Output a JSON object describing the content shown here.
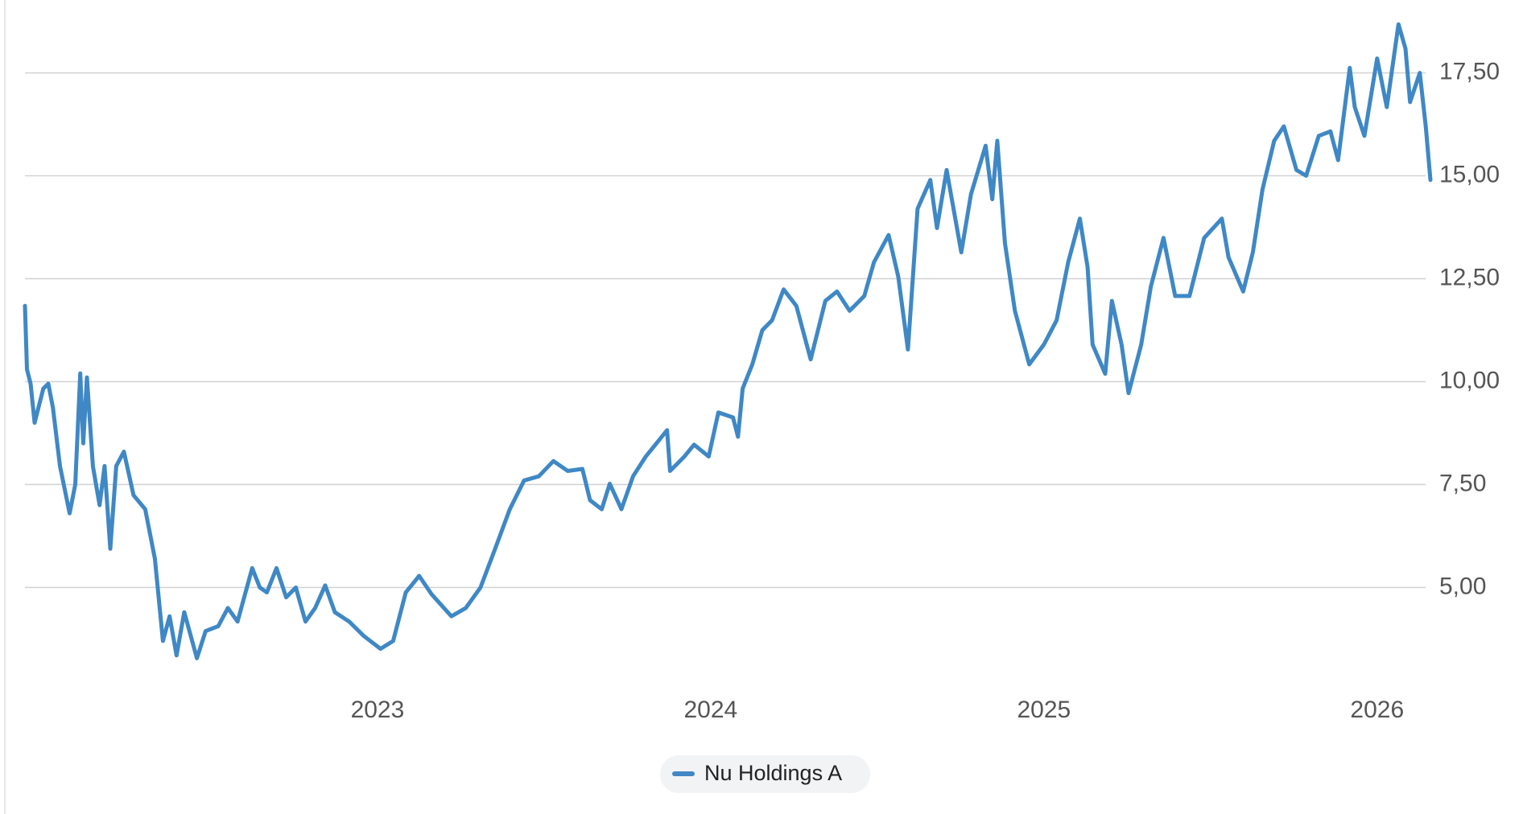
{
  "chart_data": {
    "type": "line",
    "x": [
      2021.942,
      2021.948,
      2021.959,
      2021.971,
      2021.997,
      2022.012,
      2022.026,
      2022.047,
      2022.076,
      2022.093,
      2022.108,
      2022.117,
      2022.128,
      2022.146,
      2022.166,
      2022.181,
      2022.198,
      2022.216,
      2022.239,
      2022.268,
      2022.303,
      2022.332,
      2022.356,
      2022.376,
      2022.397,
      2022.42,
      2022.458,
      2022.484,
      2022.522,
      2022.551,
      2022.58,
      2022.624,
      2022.647,
      2022.668,
      2022.697,
      2022.726,
      2022.755,
      2022.784,
      2022.813,
      2022.843,
      2022.872,
      2022.915,
      2022.959,
      2023.009,
      2023.047,
      2023.085,
      2023.125,
      2023.163,
      2023.222,
      2023.265,
      2023.309,
      2023.353,
      2023.397,
      2023.44,
      2023.484,
      2023.528,
      2023.571,
      2023.615,
      2023.638,
      2023.673,
      2023.697,
      2023.732,
      2023.767,
      2023.805,
      2023.834,
      2023.869,
      2023.878,
      2023.921,
      2023.95,
      2023.994,
      2024.023,
      2024.067,
      2024.082,
      2024.096,
      2024.125,
      2024.155,
      2024.184,
      2024.219,
      2024.257,
      2024.3,
      2024.344,
      2024.379,
      2024.417,
      2024.461,
      2024.49,
      2024.534,
      2024.563,
      2024.592,
      2024.621,
      2024.659,
      2024.679,
      2024.708,
      2024.752,
      2024.781,
      2024.825,
      2024.845,
      2024.86,
      2024.883,
      2024.913,
      2024.956,
      2025.0,
      2025.038,
      2025.073,
      2025.108,
      2025.131,
      2025.146,
      2025.184,
      2025.204,
      2025.233,
      2025.254,
      2025.292,
      2025.321,
      2025.359,
      2025.394,
      2025.437,
      2025.481,
      2025.534,
      2025.554,
      2025.598,
      2025.627,
      2025.656,
      2025.691,
      2025.72,
      2025.758,
      2025.787,
      2025.825,
      2025.86,
      2025.883,
      2025.918,
      2025.933,
      2025.962,
      2026.0,
      2026.029,
      2026.064,
      2026.085,
      2026.099,
      2026.128,
      2026.146,
      2026.16
    ],
    "series": [
      {
        "name": "Nu Holdings A",
        "color": "#3f88c5",
        "values": [
          11.84,
          10.3,
          9.95,
          9.0,
          9.83,
          9.95,
          9.36,
          7.95,
          6.8,
          7.5,
          10.2,
          8.5,
          10.1,
          7.95,
          7.0,
          7.95,
          5.94,
          7.95,
          8.3,
          7.24,
          6.9,
          5.7,
          3.7,
          4.3,
          3.35,
          4.4,
          3.28,
          3.94,
          4.06,
          4.5,
          4.17,
          5.47,
          5.0,
          4.88,
          5.47,
          4.76,
          5.0,
          4.17,
          4.5,
          5.05,
          4.4,
          4.17,
          3.82,
          3.51,
          3.7,
          4.88,
          5.28,
          4.83,
          4.3,
          4.5,
          5.0,
          5.94,
          6.9,
          7.6,
          7.7,
          8.07,
          7.83,
          7.88,
          7.12,
          6.9,
          7.52,
          6.9,
          7.7,
          8.18,
          8.47,
          8.82,
          7.83,
          8.18,
          8.47,
          8.18,
          9.25,
          9.13,
          8.66,
          9.83,
          10.42,
          11.25,
          11.49,
          12.24,
          11.84,
          10.54,
          11.96,
          12.19,
          11.72,
          12.08,
          12.9,
          13.56,
          12.55,
          10.78,
          14.2,
          14.9,
          13.73,
          15.14,
          13.14,
          14.55,
          15.73,
          14.43,
          15.85,
          13.37,
          11.72,
          10.42,
          10.9,
          11.49,
          12.9,
          13.96,
          12.78,
          10.9,
          10.19,
          11.96,
          10.9,
          9.72,
          10.9,
          12.31,
          13.49,
          12.08,
          12.08,
          13.49,
          13.96,
          13.02,
          12.19,
          13.14,
          14.67,
          15.85,
          16.2,
          15.14,
          15.0,
          15.97,
          16.08,
          15.38,
          17.62,
          16.67,
          15.97,
          17.85,
          16.67,
          18.68,
          18.09,
          16.79,
          17.5,
          16.2,
          14.9
        ]
      }
    ],
    "xlim": [
      2021.942,
      2026.16
    ],
    "xticks": [
      2023,
      2024,
      2025,
      2026
    ],
    "ylim": [
      2.76,
      19.27
    ],
    "yticks": [
      {
        "value": 5,
        "label": "5,00"
      },
      {
        "value": 7.5,
        "label": "7,50"
      },
      {
        "value": 10,
        "label": "10,00"
      },
      {
        "value": 12.5,
        "label": "12,50"
      },
      {
        "value": 15,
        "label": "15,00"
      },
      {
        "value": 17.5,
        "label": "17,50"
      }
    ],
    "grid": true,
    "legend": "bottom"
  }
}
